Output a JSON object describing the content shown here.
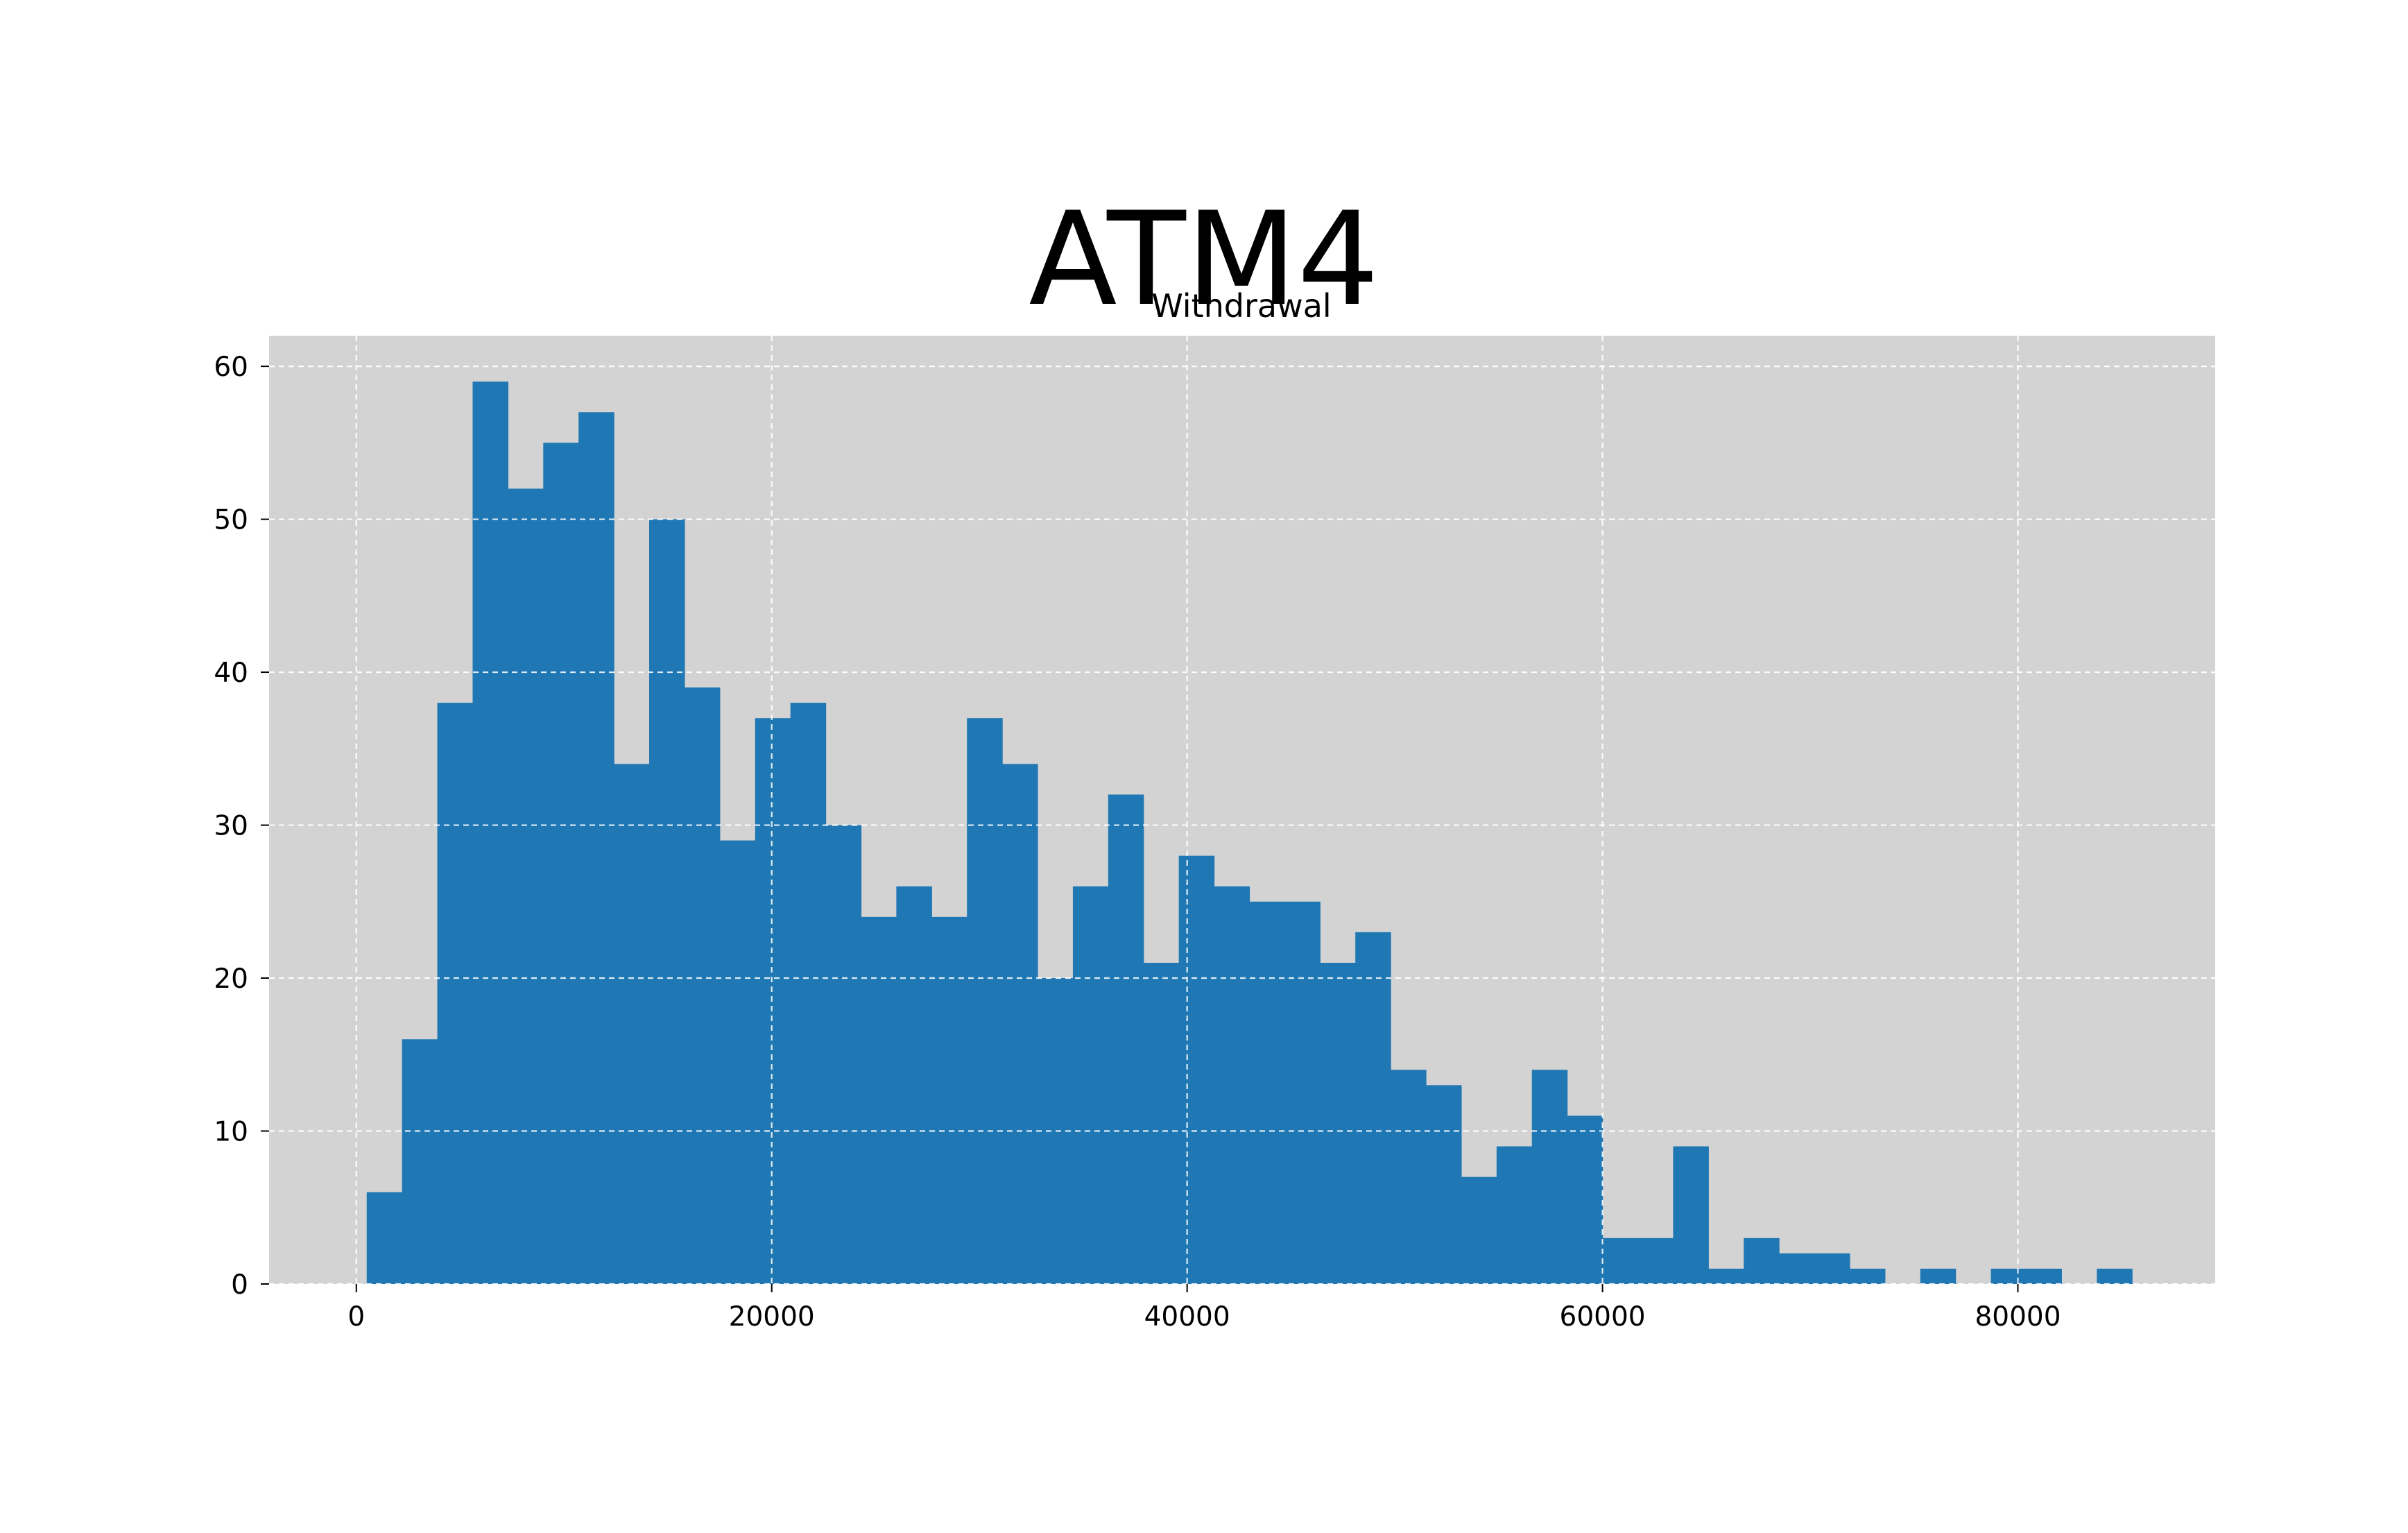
{
  "chart_data": {
    "type": "bar",
    "title": "ATM4",
    "subtitle": "Withdrawal",
    "xlabel": "",
    "ylabel": "",
    "bin_start": 500,
    "bin_width": 1700,
    "values": [
      6,
      16,
      38,
      59,
      52,
      55,
      57,
      34,
      50,
      39,
      29,
      37,
      38,
      30,
      24,
      26,
      24,
      37,
      34,
      20,
      26,
      32,
      21,
      28,
      26,
      25,
      25,
      21,
      23,
      14,
      13,
      7,
      9,
      14,
      11,
      3,
      3,
      9,
      1,
      3,
      2,
      2,
      1,
      0,
      1,
      0,
      1,
      1,
      0,
      1
    ],
    "xlim": [
      -4200,
      89500
    ],
    "ylim": [
      0,
      62
    ],
    "xticks": [
      "0",
      "20000",
      "40000",
      "60000",
      "80000"
    ],
    "yticks": [
      "0",
      "10",
      "20",
      "30",
      "40",
      "50",
      "60"
    ],
    "grid": true,
    "colors": {
      "bar": "#1f77b4",
      "plot_background": "#d3d3d3",
      "grid": "#ffffff"
    }
  }
}
